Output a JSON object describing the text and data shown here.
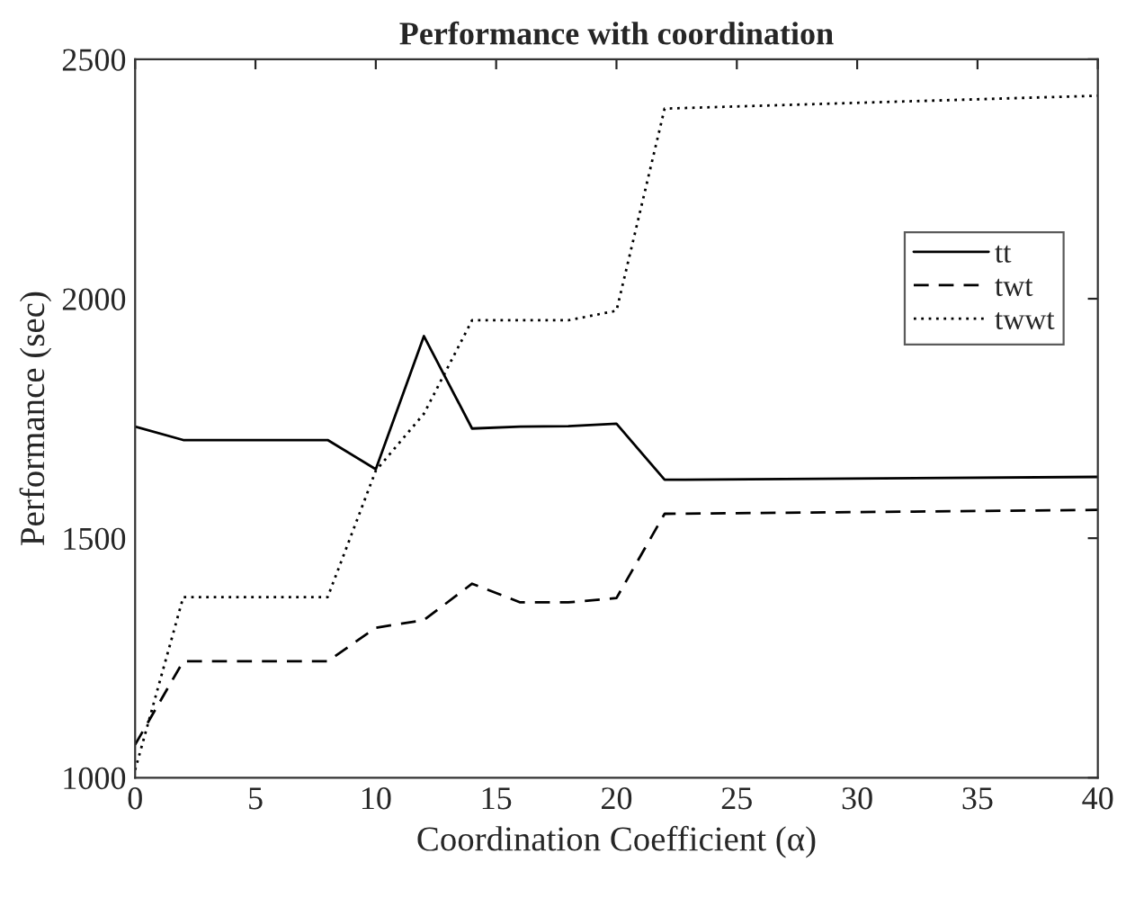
{
  "chart_data": {
    "type": "line",
    "title": "Performance with coordination",
    "xlabel": "Coordination Coefficient (α)",
    "ylabel": "Performance (sec)",
    "xlim": [
      0,
      40
    ],
    "ylim": [
      1000,
      2500
    ],
    "xticks": [
      0,
      5,
      10,
      15,
      20,
      25,
      30,
      35,
      40
    ],
    "yticks": [
      1000,
      1500,
      2000,
      2500
    ],
    "grid": false,
    "legend": "top right",
    "marker": "none",
    "series": [
      {
        "name": "tt",
        "color": "#000000",
        "line_style": "solid",
        "x": [
          0,
          2,
          8,
          10,
          12,
          14,
          16,
          18,
          20,
          22,
          40
        ],
        "values": [
          1733,
          1705,
          1705,
          1644,
          1922,
          1729,
          1733,
          1734,
          1739,
          1622,
          1628
        ]
      },
      {
        "name": "twt",
        "color": "#000000",
        "line_style": "dashed",
        "x": [
          0,
          2,
          8,
          10,
          12,
          14,
          16,
          18,
          20,
          22,
          40
        ],
        "values": [
          1069,
          1243,
          1243,
          1313,
          1329,
          1405,
          1366,
          1366,
          1375,
          1551,
          1559
        ]
      },
      {
        "name": "twwt",
        "color": "#000000",
        "line_style": "dotted",
        "x": [
          0,
          2,
          8,
          10,
          12,
          14,
          16,
          18,
          20,
          22,
          40
        ],
        "values": [
          1016,
          1377,
          1377,
          1641,
          1760,
          1955,
          1955,
          1955,
          1975,
          2397,
          2424
        ]
      }
    ]
  }
}
